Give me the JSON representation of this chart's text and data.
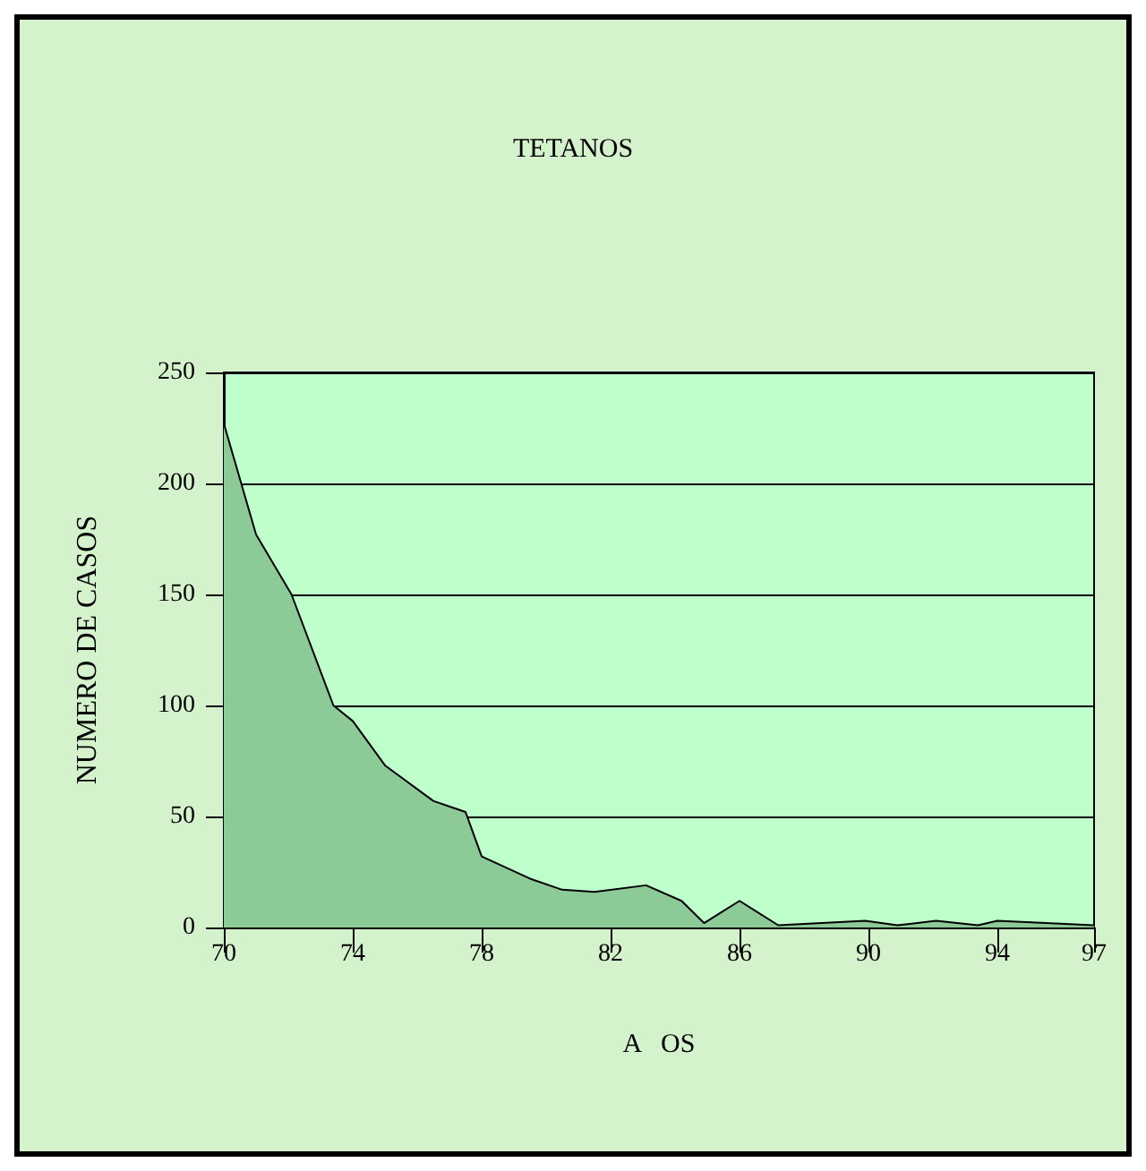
{
  "chart_data": {
    "type": "area",
    "title": "TETANOS",
    "xlabel": "A   OS",
    "ylabel": "NUMERO DE CASOS",
    "x": [
      70,
      71,
      72.1,
      73.4,
      74,
      75,
      76.5,
      77.5,
      78,
      79.5,
      80.5,
      81.5,
      83.1,
      84.2,
      84.9,
      86,
      87.2,
      89.9,
      90.9,
      92.1,
      93.4,
      94,
      95.5,
      97
    ],
    "series": [
      {
        "color": "#8ccb98",
        "values": [
          227,
          177,
          150,
          100,
          93,
          73,
          57,
          52,
          32,
          22,
          17,
          16,
          19,
          12,
          2,
          12,
          1,
          3,
          1,
          3,
          1,
          3,
          2,
          1
        ]
      }
    ],
    "xlim": [
      70,
      97
    ],
    "xticks": [
      70,
      74,
      78,
      82,
      86,
      90,
      94,
      97
    ],
    "ylim": [
      0,
      250
    ],
    "yticks": [
      0,
      50,
      100,
      150,
      200,
      250
    ],
    "grid": "y",
    "marker": "none",
    "line_style": "solid"
  }
}
